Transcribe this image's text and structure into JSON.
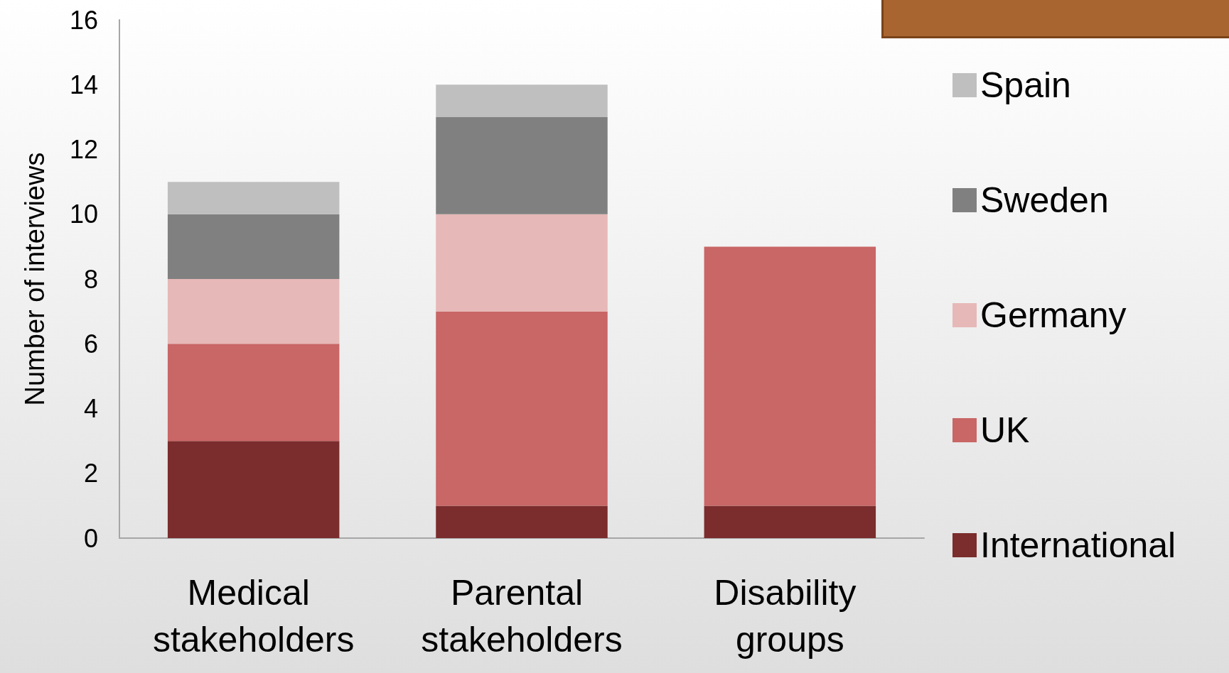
{
  "chart_data": {
    "type": "bar",
    "stacked": true,
    "ylabel": "Number of interviews",
    "categories": [
      "Medical stakeholders",
      "Parental stakeholders",
      "Disability groups"
    ],
    "series": [
      {
        "name": "International",
        "color": "#7b2c2c",
        "values": [
          3,
          1,
          1
        ]
      },
      {
        "name": "UK",
        "color": "#c96666",
        "values": [
          3,
          6,
          8
        ]
      },
      {
        "name": "Germany",
        "color": "#e6b8b7",
        "values": [
          2,
          3,
          0
        ]
      },
      {
        "name": "Sweden",
        "color": "#808080",
        "values": [
          2,
          3,
          0
        ]
      },
      {
        "name": "Spain",
        "color": "#bfbfbf",
        "values": [
          1,
          1,
          0
        ]
      }
    ],
    "ylim": [
      0,
      16
    ],
    "yticks": [
      0,
      2,
      4,
      6,
      8,
      10,
      12,
      14,
      16
    ],
    "grid": false,
    "legend": "right"
  }
}
